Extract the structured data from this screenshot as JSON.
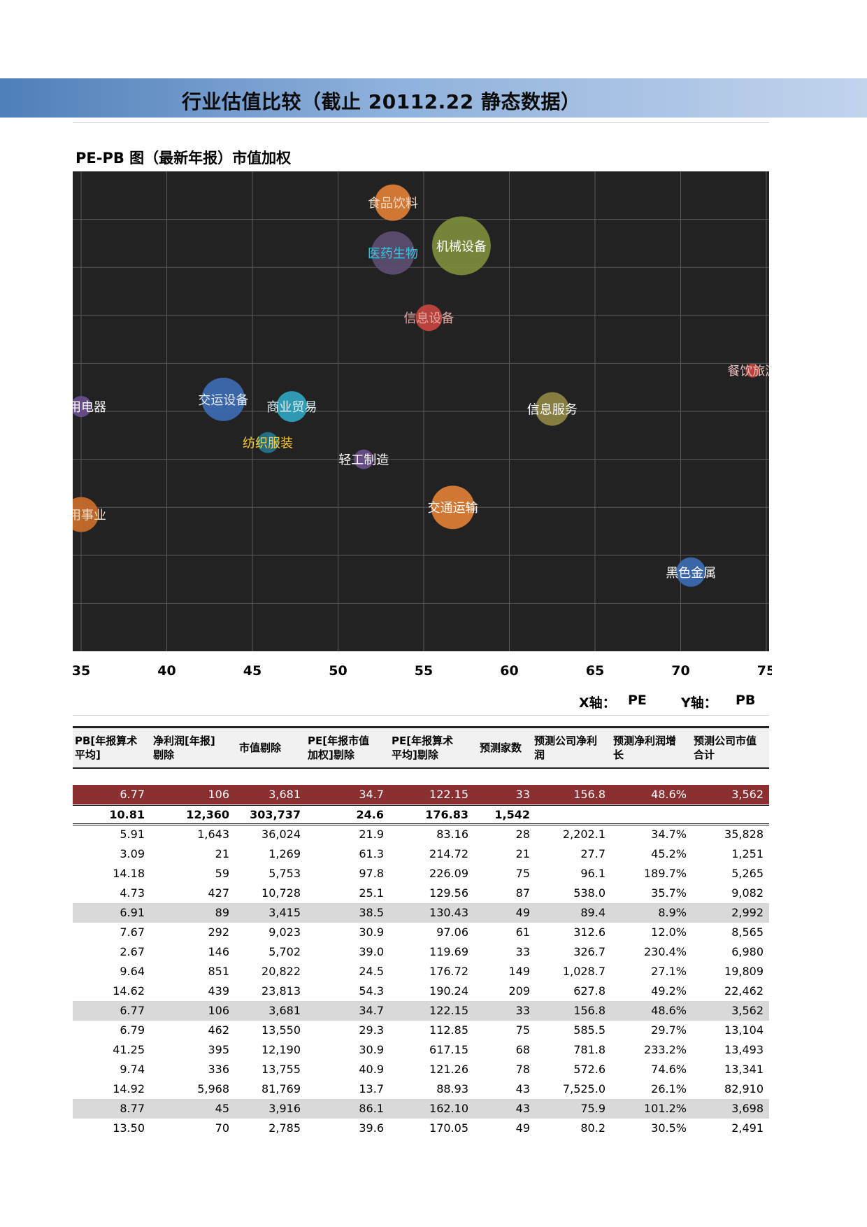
{
  "header": {
    "title": "行业估值比较（截止 20112.22 静态数据）"
  },
  "chart": {
    "title": "PE-PB 图（最新年报）市值加权"
  },
  "chart_data": {
    "type": "scatter",
    "title": "PE-PB 图（最新年报）市值加权",
    "xlabel": "X轴： PE",
    "ylabel": "Y轴： PB",
    "x_ticks": [
      "35",
      "40",
      "45",
      "50",
      "55",
      "60",
      "65",
      "70",
      "75"
    ],
    "xlim": [
      34.5,
      75
    ],
    "ylim": [
      0,
      10
    ],
    "grid": true,
    "bubble_color_note": "bubble size ~ market value",
    "points": [
      {
        "name": "食品饮料",
        "x": 53.2,
        "y": 9.35,
        "size": 26,
        "color": "#e07f35",
        "labelColor": "#f3d8c3"
      },
      {
        "name": "医药生物",
        "x": 53.2,
        "y": 8.3,
        "size": 31,
        "color": "#5c4e72",
        "labelColor": "#33c7e0"
      },
      {
        "name": "机械设备",
        "x": 57.2,
        "y": 8.45,
        "size": 42,
        "color": "#7c8e3c",
        "labelColor": "#ffffff"
      },
      {
        "name": "信息设备",
        "x": 55.3,
        "y": 6.95,
        "size": 19,
        "color": "#c6453e",
        "labelColor": "#e3a9a4"
      },
      {
        "name": "餐饮旅游",
        "x": 74.2,
        "y": 5.85,
        "size": 10,
        "color": "#c4443e",
        "labelColor": "#e9bfbd"
      },
      {
        "name": "家用电器",
        "x": 35.0,
        "y": 5.1,
        "size": 15,
        "color": "#6b4f8c",
        "labelColor": "#ffffff"
      },
      {
        "name": "交运设备",
        "x": 43.3,
        "y": 5.25,
        "size": 31,
        "color": "#3d6db3",
        "labelColor": "#e6eefc"
      },
      {
        "name": "商业贸易",
        "x": 47.3,
        "y": 5.1,
        "size": 22,
        "color": "#31a4c1",
        "labelColor": "#e0f3f8"
      },
      {
        "name": "信息服务",
        "x": 62.5,
        "y": 5.05,
        "size": 24,
        "color": "#8f8644",
        "labelColor": "#ffffff"
      },
      {
        "name": "纺织服装",
        "x": 45.9,
        "y": 4.35,
        "size": 15,
        "color": "#24768a",
        "labelColor": "#ffcc3a"
      },
      {
        "name": "轻工制造",
        "x": 51.5,
        "y": 4.0,
        "size": 14,
        "color": "#6b4f8c",
        "labelColor": "#ffffff"
      },
      {
        "name": "公用事业",
        "x": 35.0,
        "y": 2.85,
        "size": 25,
        "color": "#cc6e2c",
        "labelColor": "#f5ddc6"
      },
      {
        "name": "交通运输",
        "x": 56.7,
        "y": 3.0,
        "size": 31,
        "color": "#e07f35",
        "labelColor": "#ffffff"
      },
      {
        "name": "黑色金属",
        "x": 70.6,
        "y": 1.65,
        "size": 21,
        "color": "#3d6db3",
        "labelColor": "#ffffff"
      }
    ]
  },
  "axis_legend": {
    "x_label": "X轴：",
    "x_value": "PE",
    "y_label": "Y轴：",
    "y_value": "PB"
  },
  "table": {
    "headers": [
      [
        "PB[年报算术",
        "平均]"
      ],
      [
        "净利润[年报]",
        "剔除"
      ],
      [
        "市值剔除"
      ],
      [
        "PE[年报市值",
        "加权]剔除"
      ],
      [
        "PE[年报算术",
        "平均]剔除"
      ],
      [
        "预测家数"
      ],
      [
        "预测公司净利",
        "润"
      ],
      [
        "预测净利润增",
        "长"
      ],
      [
        "预测公司市值",
        "合计"
      ]
    ],
    "highlight_row": [
      "6.77",
      "106",
      "3,681",
      "34.7",
      "122.15",
      "33",
      "156.8",
      "48.6%",
      "3,562"
    ],
    "total_row": [
      "10.81",
      "12,360",
      "303,737",
      "24.6",
      "176.83",
      "1,542",
      "",
      "",
      ""
    ],
    "rows": [
      {
        "style": "",
        "cells": [
          "5.91",
          "1,643",
          "36,024",
          "21.9",
          "83.16",
          "28",
          "2,202.1",
          "34.7%",
          "35,828"
        ]
      },
      {
        "style": "",
        "cells": [
          "3.09",
          "21",
          "1,269",
          "61.3",
          "214.72",
          "21",
          "27.7",
          "45.2%",
          "1,251"
        ]
      },
      {
        "style": "",
        "cells": [
          "14.18",
          "59",
          "5,753",
          "97.8",
          "226.09",
          "75",
          "96.1",
          "189.7%",
          "5,265"
        ]
      },
      {
        "style": "",
        "cells": [
          "4.73",
          "427",
          "10,728",
          "25.1",
          "129.56",
          "87",
          "538.0",
          "35.7%",
          "9,082"
        ]
      },
      {
        "style": "gray",
        "cells": [
          "6.91",
          "89",
          "3,415",
          "38.5",
          "130.43",
          "49",
          "89.4",
          "8.9%",
          "2,992"
        ]
      },
      {
        "style": "",
        "cells": [
          "7.67",
          "292",
          "9,023",
          "30.9",
          "97.06",
          "61",
          "312.6",
          "12.0%",
          "8,565"
        ]
      },
      {
        "style": "",
        "cells": [
          "2.67",
          "146",
          "5,702",
          "39.0",
          "119.69",
          "33",
          "326.7",
          "230.4%",
          "6,980"
        ]
      },
      {
        "style": "",
        "cells": [
          "9.64",
          "851",
          "20,822",
          "24.5",
          "176.72",
          "149",
          "1,028.7",
          "27.1%",
          "19,809"
        ]
      },
      {
        "style": "",
        "cells": [
          "14.62",
          "439",
          "23,813",
          "54.3",
          "190.24",
          "209",
          "627.8",
          "49.2%",
          "22,462"
        ]
      },
      {
        "style": "gray",
        "cells": [
          "6.77",
          "106",
          "3,681",
          "34.7",
          "122.15",
          "33",
          "156.8",
          "48.6%",
          "3,562"
        ]
      },
      {
        "style": "",
        "cells": [
          "6.79",
          "462",
          "13,550",
          "29.3",
          "112.85",
          "75",
          "585.5",
          "29.7%",
          "13,104"
        ]
      },
      {
        "style": "",
        "cells": [
          "41.25",
          "395",
          "12,190",
          "30.9",
          "617.15",
          "68",
          "781.8",
          "233.2%",
          "13,493"
        ]
      },
      {
        "style": "",
        "cells": [
          "9.74",
          "336",
          "13,755",
          "40.9",
          "121.26",
          "78",
          "572.6",
          "74.6%",
          "13,341"
        ]
      },
      {
        "style": "",
        "cells": [
          "14.92",
          "5,968",
          "81,769",
          "13.7",
          "88.93",
          "43",
          "7,525.0",
          "26.1%",
          "82,910"
        ]
      },
      {
        "style": "gray",
        "cells": [
          "8.77",
          "45",
          "3,916",
          "86.1",
          "162.10",
          "43",
          "75.9",
          "101.2%",
          "3,698"
        ]
      },
      {
        "style": "",
        "cells": [
          "13.50",
          "70",
          "2,785",
          "39.6",
          "170.05",
          "49",
          "80.2",
          "30.5%",
          "2,491"
        ]
      }
    ]
  }
}
